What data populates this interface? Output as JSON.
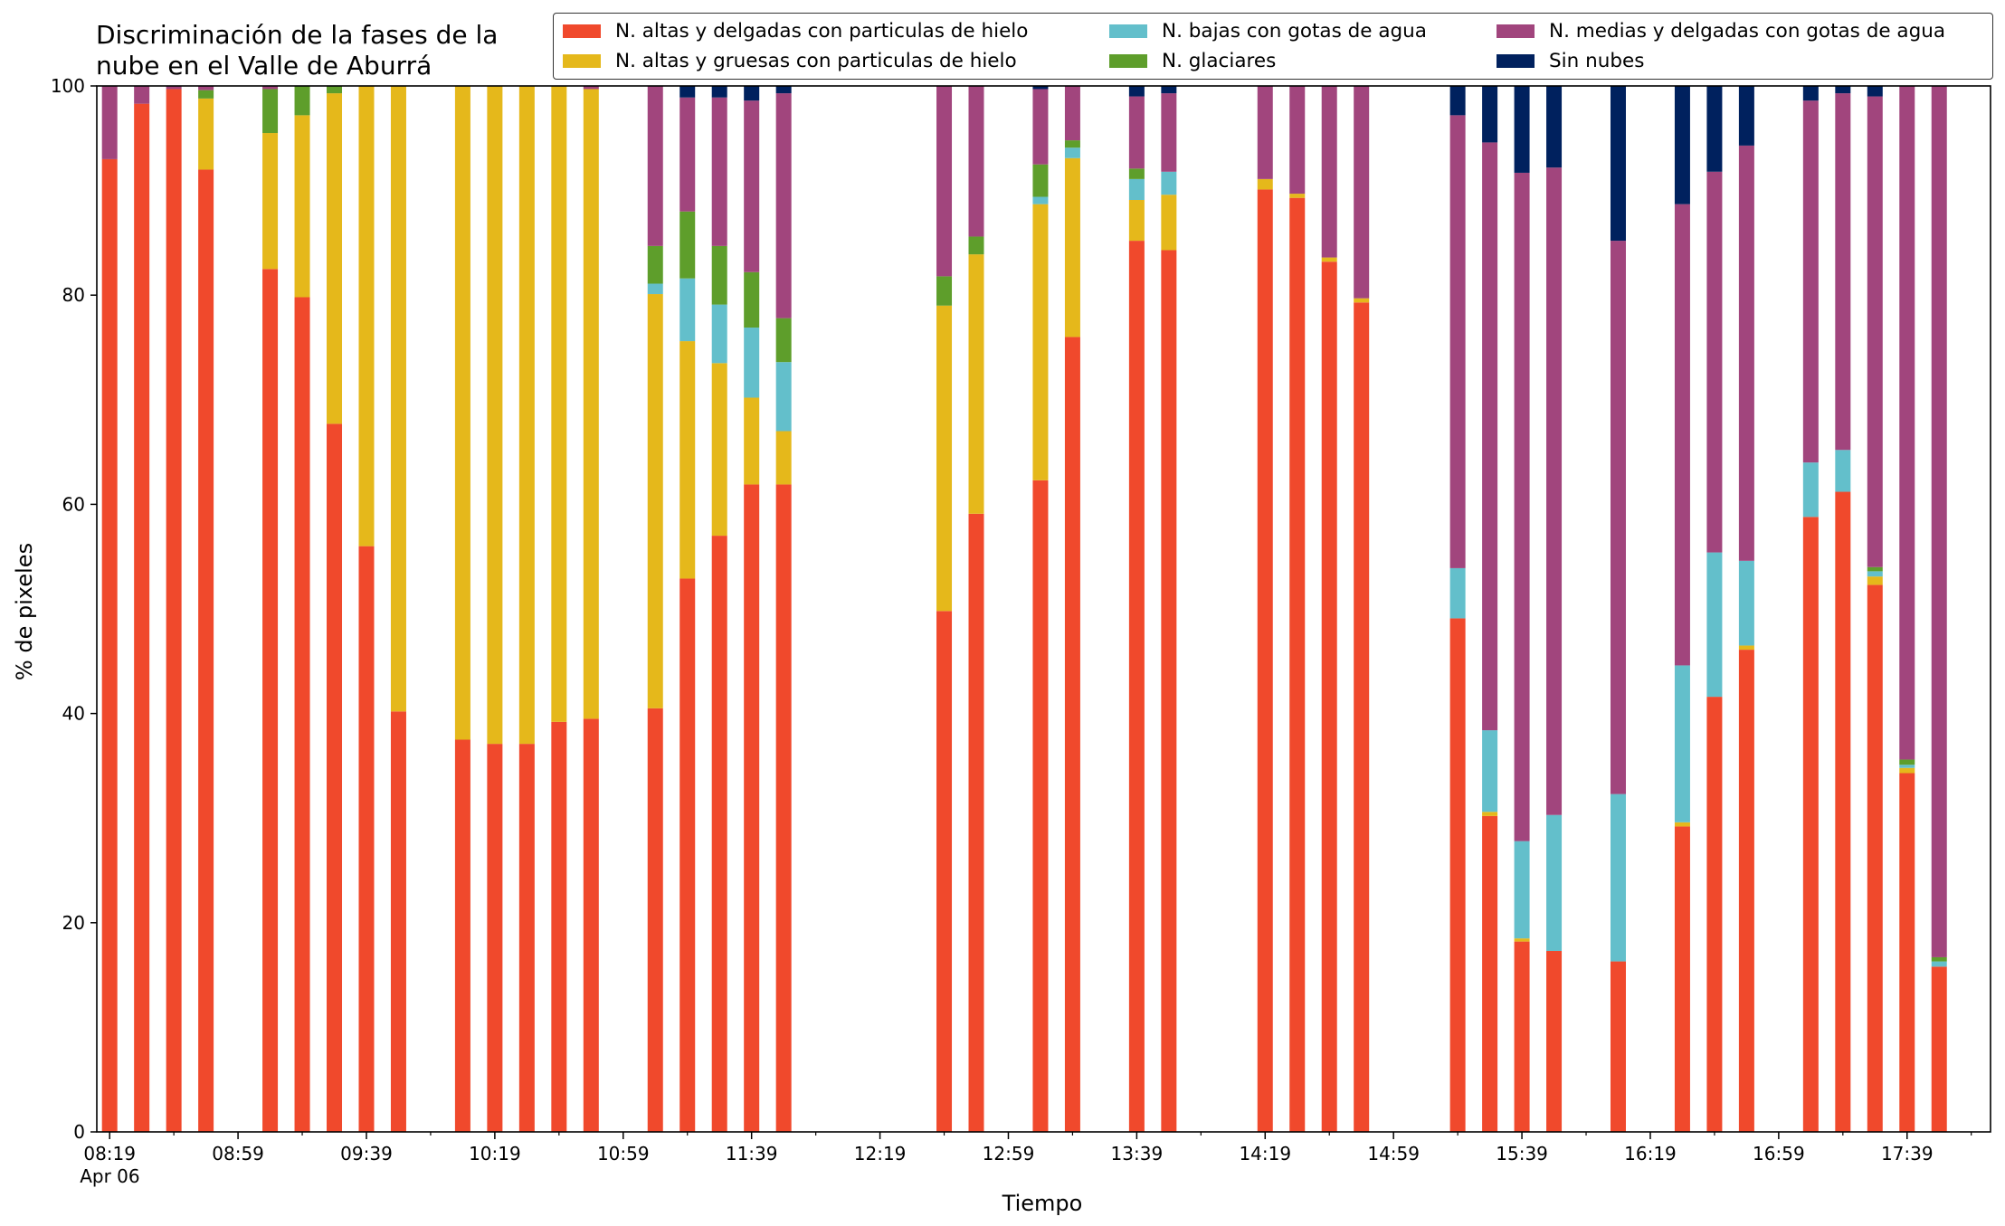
{
  "title": "Discriminación de la fases de la\nnube en el Valle de Aburrá",
  "chart_data": {
    "type": "bar",
    "stacked": true,
    "title": "Discriminación de la fases de la\nnube en el Valle de Aburrá",
    "xlabel": "Tiempo",
    "ylabel": "% de pixeles",
    "ylim": [
      0,
      100
    ],
    "yticks": [
      "0",
      "20",
      "40",
      "60",
      "80",
      "100"
    ],
    "xlim_minutes_after_0819": [
      -4,
      586
    ],
    "xtick_labels": [
      "08:19",
      "08:59",
      "09:39",
      "10:19",
      "10:59",
      "11:39",
      "12:19",
      "12:59",
      "13:39",
      "14:19",
      "14:59",
      "15:39",
      "16:19",
      "16:59",
      "17:39"
    ],
    "xtick_sublabel": "Apr 06",
    "x": [
      "08:19",
      "08:29",
      "08:39",
      "08:49",
      "09:09",
      "09:19",
      "09:29",
      "09:39",
      "09:49",
      "10:09",
      "10:19",
      "10:29",
      "10:39",
      "10:49",
      "11:09",
      "11:19",
      "11:29",
      "11:39",
      "11:49",
      "12:39",
      "12:49",
      "13:09",
      "13:19",
      "13:39",
      "13:49",
      "14:19",
      "14:29",
      "14:39",
      "14:49",
      "15:19",
      "15:29",
      "15:39",
      "15:49",
      "16:09",
      "16:29",
      "16:39",
      "16:49",
      "17:09",
      "17:19",
      "17:29",
      "17:39",
      "17:49"
    ],
    "legend": {
      "position": "top-right",
      "columns": 3
    },
    "series": [
      {
        "name": "N. altas y delgadas con particulas de hielo",
        "color": "#f0492c",
        "values": [
          93,
          98.3,
          99.7,
          92,
          82.5,
          79.8,
          67.7,
          56,
          40.2,
          37.5,
          37.1,
          37.1,
          39.2,
          39.5,
          40.5,
          52.9,
          57,
          61.9,
          61.9,
          49.8,
          59.1,
          62.3,
          76,
          85.2,
          84.3,
          90.1,
          89.3,
          83.2,
          79.3,
          49.1,
          30.2,
          18.2,
          17.3,
          16.3,
          29.2,
          41.6,
          46.1,
          58.8,
          61.2,
          52.3,
          34.3,
          15.8
        ]
      },
      {
        "name": "N. altas y gruesas con particulas de hielo",
        "color": "#e5b81b",
        "values": [
          0,
          0,
          0,
          6.8,
          13,
          17.4,
          31.6,
          44,
          59.8,
          62.5,
          62.9,
          62.9,
          60.8,
          60.2,
          39.6,
          22.7,
          16.5,
          8.3,
          5.1,
          29.2,
          24.8,
          26.4,
          17.1,
          3.9,
          5.3,
          1,
          0.4,
          0.4,
          0.4,
          0,
          0.4,
          0.3,
          0,
          0,
          0.4,
          0,
          0.4,
          0,
          0,
          0.8,
          0.5,
          0
        ]
      },
      {
        "name": "N. bajas con gotas de agua",
        "color": "#63bfcb",
        "values": [
          0,
          0,
          0,
          0,
          0,
          0,
          0,
          0,
          0,
          0,
          0,
          0,
          0,
          0,
          1,
          6,
          5.6,
          6.7,
          6.6,
          0,
          0,
          0.7,
          1,
          2,
          2.2,
          0,
          0,
          0,
          0,
          4.8,
          7.8,
          9.3,
          13,
          16,
          15,
          13.8,
          8.1,
          5.2,
          4,
          0.5,
          0.3,
          0.5
        ]
      },
      {
        "name": "N. glaciares",
        "color": "#5e9e2b",
        "values": [
          0,
          0,
          0,
          0.8,
          4.2,
          2.8,
          0.7,
          0,
          0,
          0,
          0,
          0,
          0,
          0,
          3.6,
          6.4,
          5.6,
          5.3,
          4.2,
          2.8,
          1.7,
          3.1,
          0.7,
          1,
          0,
          0,
          0,
          0,
          0,
          0,
          0,
          0,
          0,
          0,
          0,
          0,
          0,
          0,
          0,
          0.4,
          0.5,
          0.4
        ]
      },
      {
        "name": "N. medias y delgadas con gotas de agua",
        "color": "#a1457d",
        "values": [
          7,
          1.7,
          0.3,
          0.4,
          0.3,
          0,
          0,
          0,
          0,
          0,
          0,
          0,
          0,
          0.3,
          15.3,
          10.9,
          14.2,
          16.4,
          21.5,
          18.2,
          14.4,
          7.2,
          5.2,
          6.9,
          7.5,
          8.9,
          10.3,
          16.4,
          20.3,
          43.3,
          56.2,
          63.9,
          61.9,
          52.9,
          44.1,
          36.4,
          39.7,
          34.6,
          34.1,
          45,
          64.4,
          83.3
        ]
      },
      {
        "name": "Sin nubes",
        "color": "#00215e",
        "values": [
          0,
          0,
          0,
          0,
          0,
          0,
          0,
          0,
          0,
          0,
          0,
          0,
          0,
          0,
          0,
          1.1,
          1.1,
          1.4,
          0.7,
          0,
          0,
          0.3,
          0,
          1,
          0.7,
          0,
          0,
          0,
          0,
          2.8,
          5.4,
          8.3,
          7.8,
          14.8,
          11.3,
          8.2,
          5.7,
          1.4,
          0.7,
          1,
          0,
          0
        ]
      }
    ]
  }
}
